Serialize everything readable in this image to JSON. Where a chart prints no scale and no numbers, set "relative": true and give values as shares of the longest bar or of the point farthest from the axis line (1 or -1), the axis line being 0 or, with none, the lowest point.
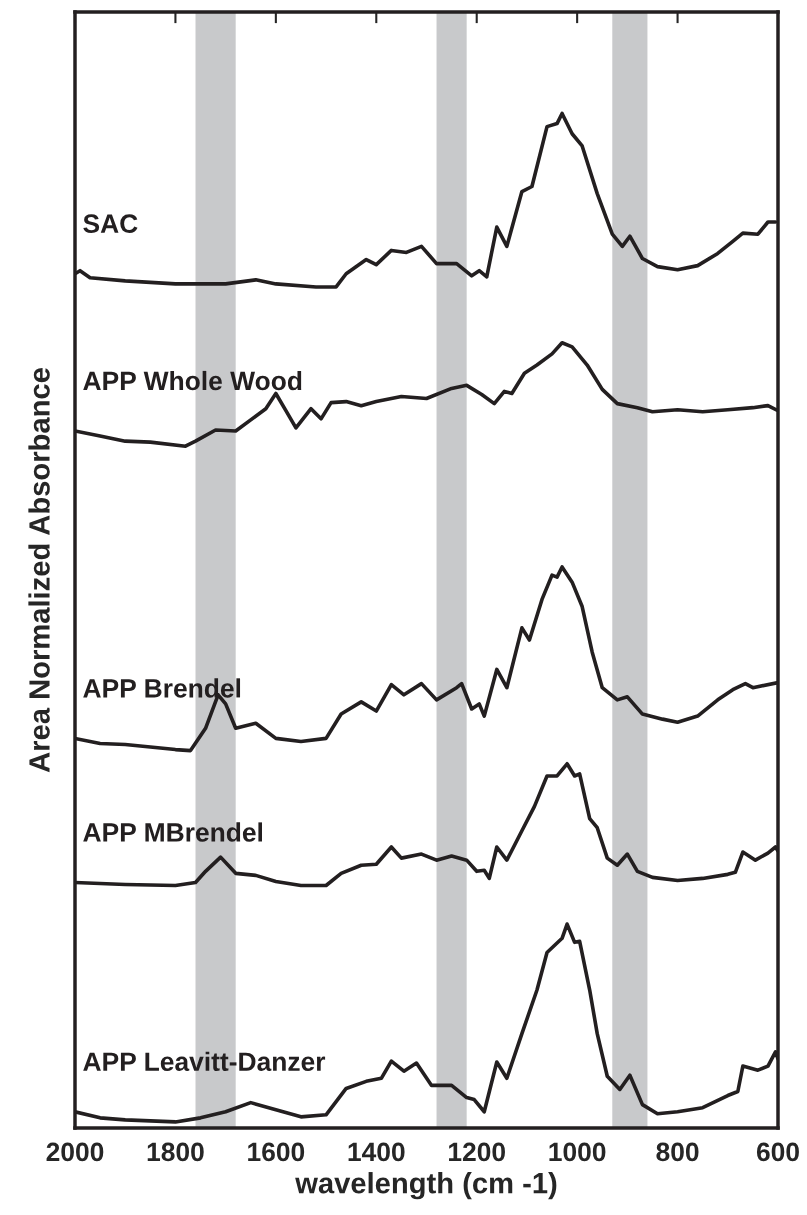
{
  "chart_data": {
    "type": "line",
    "relative": true,
    "xlabel": "wavelength (cm -1)",
    "ylabel": "Area Normalized Absorbance",
    "xlim": [
      2000,
      600
    ],
    "xticks": [
      2000,
      1800,
      1600,
      1400,
      1200,
      1000,
      800,
      600
    ],
    "grid": false,
    "legend": false,
    "marker": "none",
    "line_style": "solid",
    "bands": [
      {
        "axis": "x",
        "from": 1760,
        "to": 1680,
        "color": "#c8c9cb"
      },
      {
        "axis": "x",
        "from": 1280,
        "to": 1220,
        "color": "#c8c9cb"
      },
      {
        "axis": "x",
        "from": 930,
        "to": 860,
        "color": "#c8c9cb"
      }
    ],
    "series": [
      {
        "name": "SAC",
        "color": "#231f20",
        "x": [
          2000,
          1990,
          1970,
          1900,
          1800,
          1700,
          1640,
          1600,
          1520,
          1480,
          1460,
          1420,
          1400,
          1370,
          1340,
          1310,
          1280,
          1240,
          1210,
          1195,
          1180,
          1160,
          1140,
          1110,
          1090,
          1060,
          1040,
          1030,
          1010,
          990,
          960,
          930,
          910,
          895,
          870,
          840,
          800,
          760,
          720,
          690,
          670,
          640,
          620,
          605
        ],
        "values": [
          0.842,
          0.845,
          0.838,
          0.835,
          0.832,
          0.832,
          0.836,
          0.832,
          0.829,
          0.829,
          0.842,
          0.856,
          0.851,
          0.865,
          0.863,
          0.869,
          0.852,
          0.852,
          0.84,
          0.845,
          0.839,
          0.888,
          0.869,
          0.923,
          0.928,
          0.987,
          0.99,
          1.0,
          0.98,
          0.968,
          0.921,
          0.881,
          0.869,
          0.879,
          0.857,
          0.849,
          0.846,
          0.85,
          0.862,
          0.874,
          0.882,
          0.881,
          0.893,
          0.893
        ]
      },
      {
        "name": "APP Whole Wood",
        "color": "#231f20",
        "x": [
          2000,
          1950,
          1900,
          1850,
          1780,
          1760,
          1720,
          1680,
          1650,
          1620,
          1600,
          1580,
          1560,
          1530,
          1510,
          1490,
          1460,
          1430,
          1400,
          1350,
          1300,
          1250,
          1220,
          1190,
          1165,
          1145,
          1130,
          1105,
          1080,
          1050,
          1030,
          1010,
          980,
          950,
          920,
          880,
          850,
          800,
          750,
          700,
          650,
          620,
          600
        ],
        "values": [
          0.687,
          0.682,
          0.677,
          0.676,
          0.672,
          0.677,
          0.688,
          0.687,
          0.698,
          0.709,
          0.724,
          0.707,
          0.69,
          0.709,
          0.699,
          0.715,
          0.716,
          0.712,
          0.716,
          0.721,
          0.719,
          0.729,
          0.732,
          0.723,
          0.714,
          0.726,
          0.724,
          0.744,
          0.752,
          0.763,
          0.774,
          0.77,
          0.752,
          0.728,
          0.714,
          0.71,
          0.706,
          0.708,
          0.706,
          0.708,
          0.71,
          0.712,
          0.707
        ]
      },
      {
        "name": "APP Brendel",
        "color": "#231f20",
        "x": [
          2000,
          1950,
          1900,
          1800,
          1770,
          1740,
          1715,
          1700,
          1680,
          1640,
          1600,
          1550,
          1500,
          1470,
          1430,
          1400,
          1370,
          1345,
          1310,
          1280,
          1240,
          1230,
          1210,
          1195,
          1185,
          1160,
          1140,
          1110,
          1095,
          1070,
          1050,
          1040,
          1030,
          1010,
          990,
          970,
          950,
          920,
          900,
          870,
          830,
          800,
          760,
          720,
          690,
          665,
          650,
          600
        ],
        "values": [
          0.384,
          0.379,
          0.378,
          0.373,
          0.372,
          0.394,
          0.427,
          0.418,
          0.394,
          0.399,
          0.384,
          0.381,
          0.384,
          0.408,
          0.42,
          0.411,
          0.437,
          0.427,
          0.438,
          0.422,
          0.434,
          0.438,
          0.413,
          0.418,
          0.406,
          0.452,
          0.434,
          0.493,
          0.481,
          0.521,
          0.545,
          0.543,
          0.553,
          0.538,
          0.514,
          0.469,
          0.434,
          0.422,
          0.425,
          0.408,
          0.403,
          0.4,
          0.406,
          0.422,
          0.432,
          0.438,
          0.434,
          0.439
        ]
      },
      {
        "name": "APP MBrendel",
        "color": "#231f20",
        "x": [
          2000,
          1900,
          1800,
          1760,
          1740,
          1710,
          1680,
          1640,
          1600,
          1550,
          1500,
          1470,
          1430,
          1400,
          1370,
          1350,
          1310,
          1280,
          1250,
          1220,
          1200,
          1185,
          1175,
          1160,
          1140,
          1110,
          1085,
          1060,
          1040,
          1020,
          1005,
          995,
          975,
          960,
          940,
          920,
          900,
          880,
          850,
          800,
          750,
          700,
          685,
          670,
          645,
          620,
          605,
          600
        ],
        "values": [
          0.242,
          0.24,
          0.239,
          0.242,
          0.253,
          0.267,
          0.251,
          0.249,
          0.243,
          0.239,
          0.239,
          0.251,
          0.259,
          0.26,
          0.277,
          0.266,
          0.27,
          0.264,
          0.268,
          0.264,
          0.253,
          0.254,
          0.246,
          0.277,
          0.264,
          0.293,
          0.317,
          0.347,
          0.347,
          0.359,
          0.347,
          0.349,
          0.305,
          0.296,
          0.266,
          0.259,
          0.27,
          0.253,
          0.247,
          0.244,
          0.246,
          0.25,
          0.252,
          0.272,
          0.264,
          0.271,
          0.277,
          0.273
        ]
      },
      {
        "name": "APP Leavitt-Danzer",
        "color": "#231f20",
        "x": [
          2000,
          1950,
          1900,
          1800,
          1750,
          1700,
          1650,
          1600,
          1550,
          1500,
          1460,
          1420,
          1390,
          1370,
          1345,
          1320,
          1290,
          1250,
          1220,
          1205,
          1185,
          1160,
          1140,
          1110,
          1080,
          1060,
          1030,
          1020,
          1005,
          995,
          975,
          960,
          940,
          915,
          895,
          870,
          840,
          800,
          750,
          700,
          680,
          670,
          640,
          620,
          605,
          600
        ],
        "values": [
          0.016,
          0.01,
          0.008,
          0.006,
          0.01,
          0.016,
          0.025,
          0.018,
          0.011,
          0.013,
          0.039,
          0.046,
          0.049,
          0.066,
          0.056,
          0.064,
          0.042,
          0.042,
          0.03,
          0.028,
          0.016,
          0.065,
          0.049,
          0.093,
          0.136,
          0.173,
          0.187,
          0.201,
          0.183,
          0.184,
          0.136,
          0.093,
          0.051,
          0.038,
          0.052,
          0.023,
          0.014,
          0.016,
          0.02,
          0.032,
          0.036,
          0.061,
          0.057,
          0.061,
          0.075,
          0.068
        ]
      }
    ]
  }
}
